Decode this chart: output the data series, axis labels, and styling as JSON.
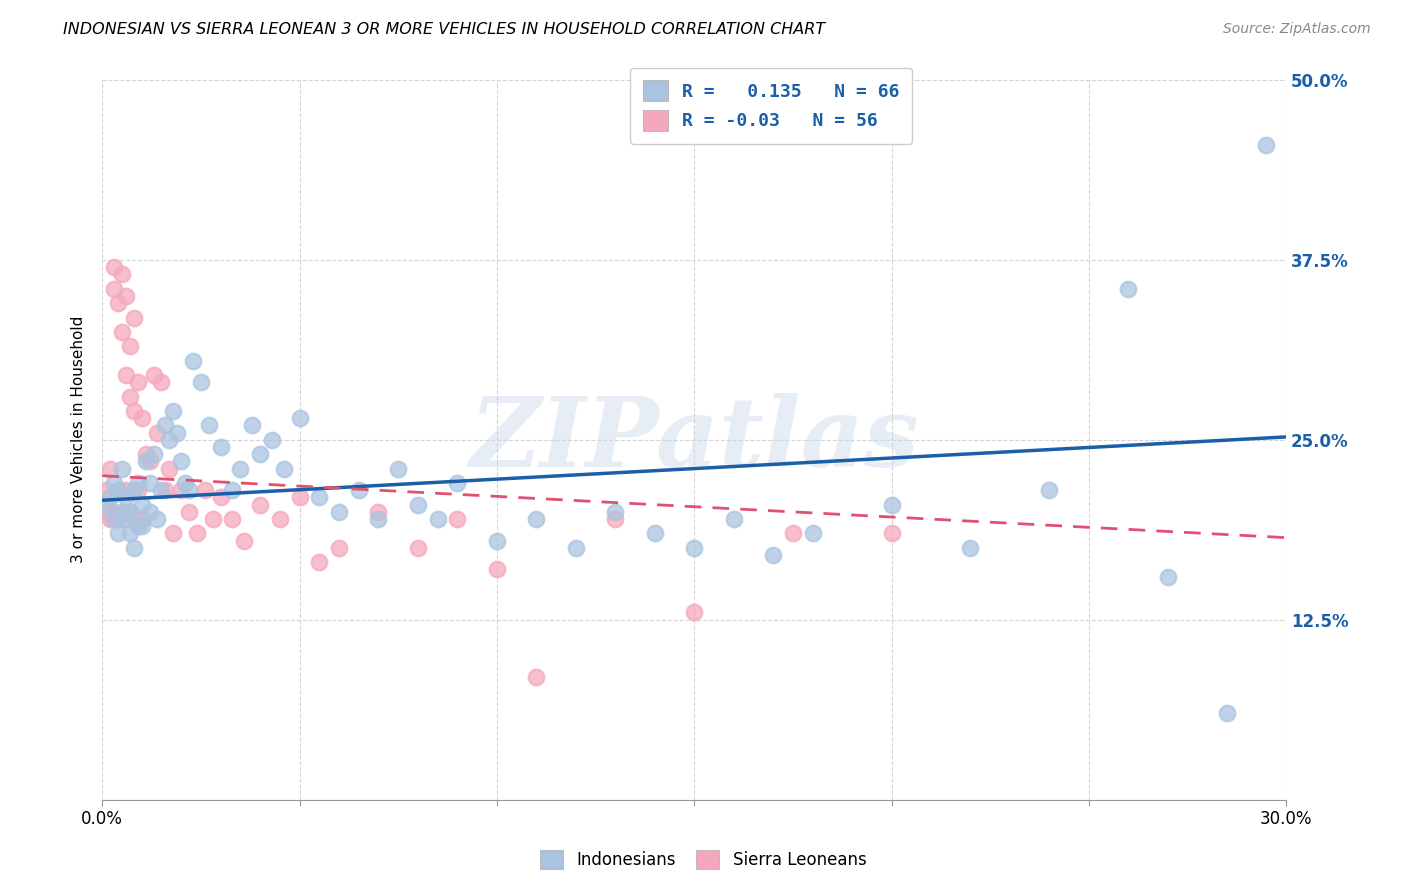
{
  "title": "INDONESIAN VS SIERRA LEONEAN 3 OR MORE VEHICLES IN HOUSEHOLD CORRELATION CHART",
  "source": "Source: ZipAtlas.com",
  "ylabel": "3 or more Vehicles in Household",
  "xlabel": "",
  "xlim": [
    0.0,
    0.3
  ],
  "ylim": [
    0.0,
    0.5
  ],
  "xticks": [
    0.0,
    0.05,
    0.1,
    0.15,
    0.2,
    0.25,
    0.3
  ],
  "yticks": [
    0.0,
    0.125,
    0.25,
    0.375,
    0.5
  ],
  "ytick_labels_right": [
    "",
    "12.5%",
    "25.0%",
    "37.5%",
    "50.0%"
  ],
  "xtick_labels": [
    "0.0%",
    "",
    "",
    "",
    "",
    "",
    "30.0%"
  ],
  "indonesian_color": "#aac4e0",
  "sierra_leonean_color": "#f5a8bc",
  "indonesian_line_color": "#1a5fa8",
  "sierra_leonean_line_color": "#e05070",
  "background_color": "#ffffff",
  "grid_color": "#d0d0d0",
  "R_indonesian": 0.135,
  "N_indonesian": 66,
  "R_sierra": -0.03,
  "N_sierra": 56,
  "watermark": "ZIPatlas",
  "indonesian_x": [
    0.001,
    0.002,
    0.003,
    0.003,
    0.004,
    0.004,
    0.005,
    0.005,
    0.006,
    0.006,
    0.007,
    0.007,
    0.008,
    0.008,
    0.009,
    0.009,
    0.01,
    0.01,
    0.011,
    0.012,
    0.012,
    0.013,
    0.014,
    0.015,
    0.016,
    0.017,
    0.018,
    0.019,
    0.02,
    0.021,
    0.022,
    0.023,
    0.025,
    0.027,
    0.03,
    0.033,
    0.035,
    0.038,
    0.04,
    0.043,
    0.046,
    0.05,
    0.055,
    0.06,
    0.065,
    0.07,
    0.075,
    0.08,
    0.085,
    0.09,
    0.1,
    0.11,
    0.12,
    0.13,
    0.14,
    0.15,
    0.16,
    0.17,
    0.18,
    0.2,
    0.22,
    0.24,
    0.26,
    0.27,
    0.285,
    0.295
  ],
  "indonesian_y": [
    0.205,
    0.21,
    0.195,
    0.22,
    0.185,
    0.215,
    0.2,
    0.23,
    0.195,
    0.21,
    0.185,
    0.2,
    0.175,
    0.215,
    0.19,
    0.22,
    0.205,
    0.19,
    0.235,
    0.22,
    0.2,
    0.24,
    0.195,
    0.215,
    0.26,
    0.25,
    0.27,
    0.255,
    0.235,
    0.22,
    0.215,
    0.305,
    0.29,
    0.26,
    0.245,
    0.215,
    0.23,
    0.26,
    0.24,
    0.25,
    0.23,
    0.265,
    0.21,
    0.2,
    0.215,
    0.195,
    0.23,
    0.205,
    0.195,
    0.22,
    0.18,
    0.195,
    0.175,
    0.2,
    0.185,
    0.175,
    0.195,
    0.17,
    0.185,
    0.205,
    0.175,
    0.215,
    0.355,
    0.155,
    0.06,
    0.455
  ],
  "sierra_leonean_x": [
    0.001,
    0.001,
    0.002,
    0.002,
    0.003,
    0.003,
    0.003,
    0.004,
    0.004,
    0.004,
    0.005,
    0.005,
    0.005,
    0.006,
    0.006,
    0.006,
    0.007,
    0.007,
    0.007,
    0.008,
    0.008,
    0.008,
    0.009,
    0.009,
    0.01,
    0.01,
    0.011,
    0.012,
    0.013,
    0.014,
    0.015,
    0.016,
    0.017,
    0.018,
    0.02,
    0.022,
    0.024,
    0.026,
    0.028,
    0.03,
    0.033,
    0.036,
    0.04,
    0.045,
    0.05,
    0.055,
    0.06,
    0.07,
    0.08,
    0.09,
    0.1,
    0.11,
    0.13,
    0.15,
    0.175,
    0.2
  ],
  "sierra_leonean_y": [
    0.2,
    0.215,
    0.195,
    0.23,
    0.2,
    0.37,
    0.355,
    0.195,
    0.345,
    0.215,
    0.325,
    0.2,
    0.365,
    0.295,
    0.35,
    0.215,
    0.28,
    0.315,
    0.2,
    0.27,
    0.335,
    0.195,
    0.29,
    0.215,
    0.265,
    0.195,
    0.24,
    0.235,
    0.295,
    0.255,
    0.29,
    0.215,
    0.23,
    0.185,
    0.215,
    0.2,
    0.185,
    0.215,
    0.195,
    0.21,
    0.195,
    0.18,
    0.205,
    0.195,
    0.21,
    0.165,
    0.175,
    0.2,
    0.175,
    0.195,
    0.16,
    0.085,
    0.195,
    0.13,
    0.185,
    0.185
  ],
  "ind_line_x0": 0.0,
  "ind_line_y0": 0.208,
  "ind_line_x1": 0.3,
  "ind_line_y1": 0.252,
  "sle_line_x0": 0.0,
  "sle_line_y0": 0.225,
  "sle_line_x1": 0.3,
  "sle_line_y1": 0.182
}
